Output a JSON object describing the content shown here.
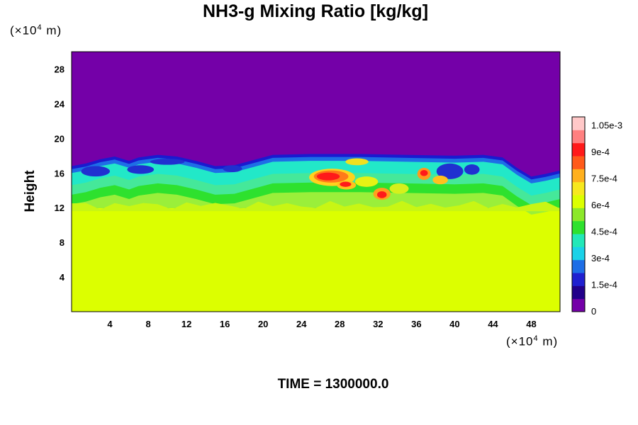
{
  "title": "NH3-g Mixing Ratio [kg/kg]",
  "time_label": "TIME = 1300000.0",
  "colors": {
    "above_top": "#7400a8",
    "below_base": "#dcff00",
    "layer_cyan": "#22e8c8",
    "layer_green": "#2ee12e",
    "peak_red": "#ff1a1a"
  },
  "chart_data": {
    "type": "heatmap",
    "title": "NH3-g Mixing Ratio [kg/kg]",
    "xlabel": "",
    "ylabel": "Height",
    "x_unit": {
      "prefix": "(×10",
      "exp": "4",
      "suffix": " m)"
    },
    "y_unit": {
      "prefix": "(×10",
      "exp": "4",
      "suffix": " m)"
    },
    "xlim": [
      0,
      51
    ],
    "ylim": [
      0,
      30
    ],
    "x_ticks": [
      4,
      8,
      12,
      16,
      20,
      24,
      28,
      32,
      36,
      40,
      44,
      48
    ],
    "y_ticks": [
      4,
      8,
      12,
      16,
      20,
      24,
      28
    ],
    "colorbar": {
      "range": [
        0,
        0.0011
      ],
      "tick_values": [
        0,
        0.00015,
        0.0003,
        0.00045,
        0.0006,
        0.00075,
        0.0009,
        0.00105
      ],
      "tick_labels": [
        "0",
        "1.5e-4",
        "3e-4",
        "4.5e-4",
        "6e-4",
        "7.5e-4",
        "9e-4",
        "1.05e-3"
      ],
      "placement": "right"
    },
    "field_summary": {
      "lower_region_value": 0.00077,
      "upper_region_value": 0,
      "transition_band_height": [
        12,
        18
      ],
      "peak_region": {
        "x": [
          25,
          33
        ],
        "y": [
          13,
          16.5
        ],
        "value": 0.00105
      }
    },
    "grid": false
  }
}
